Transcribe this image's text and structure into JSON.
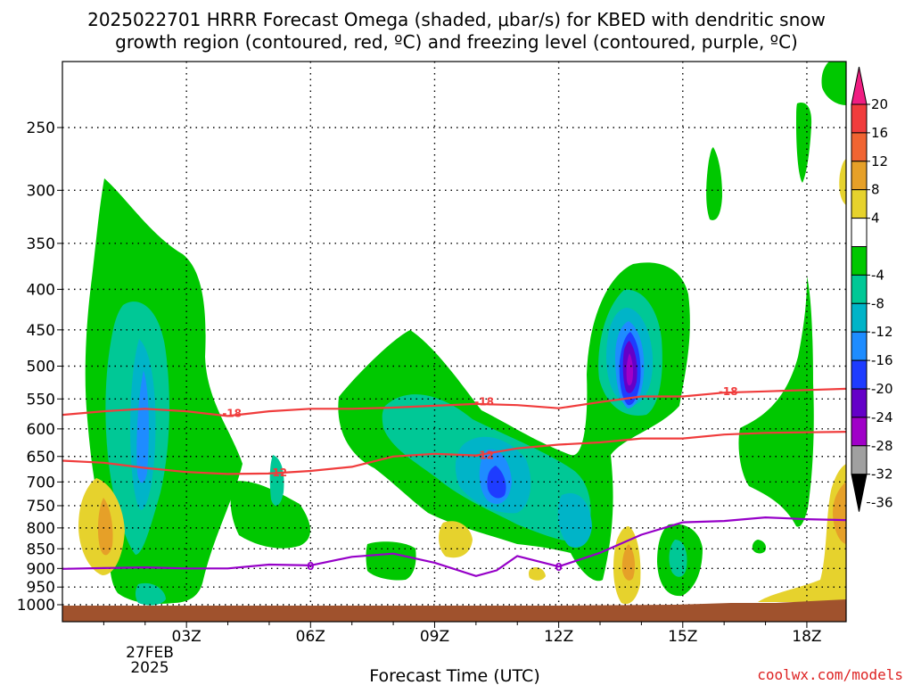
{
  "chart_data": {
    "type": "contour",
    "title_line1": "2025022701 HRRR Forecast Omega (shaded, μbar/s) for KBED with dendritic snow",
    "title_line2": "growth region (contoured, red, ºC) and freezing level (contoured, purple, ºC)",
    "xlabel": "Forecast Time (UTC)",
    "x_ticks": [
      "03Z",
      "06Z",
      "09Z",
      "12Z",
      "15Z",
      "18Z"
    ],
    "x_tick_hours": [
      3,
      6,
      9,
      12,
      15,
      18
    ],
    "x_date_lines": [
      "27FEB",
      "2025"
    ],
    "x_range_hours": [
      0.0,
      18.95
    ],
    "y_ticks": [
      250,
      300,
      350,
      400,
      450,
      500,
      550,
      600,
      650,
      700,
      750,
      800,
      850,
      900,
      950,
      1000
    ],
    "y_range_hpa": [
      200,
      1025
    ],
    "grid": true,
    "colorbar": {
      "tick_labels": [
        "20",
        "16",
        "12",
        "8",
        "4",
        "-4",
        "-8",
        "-12",
        "-16",
        "-20",
        "-24",
        "-28",
        "-32",
        "-36"
      ],
      "bins": [
        {
          "from": 16,
          "to": 20,
          "color": "#f03c3c"
        },
        {
          "from": 12,
          "to": 16,
          "color": "#f06432"
        },
        {
          "from": 8,
          "to": 12,
          "color": "#e6a028"
        },
        {
          "from": 4,
          "to": 8,
          "color": "#e6d22d"
        },
        {
          "from": -4,
          "to": 4,
          "color": "#ffffff"
        },
        {
          "from": -8,
          "to": -4,
          "color": "#00c800"
        },
        {
          "from": -12,
          "to": -8,
          "color": "#00c896"
        },
        {
          "from": -16,
          "to": -12,
          "color": "#00b4c8"
        },
        {
          "from": -20,
          "to": -16,
          "color": "#1e8cff"
        },
        {
          "from": -24,
          "to": -20,
          "color": "#1e3cff"
        },
        {
          "from": -28,
          "to": -24,
          "color": "#6400c8"
        },
        {
          "from": -32,
          "to": -28,
          "color": "#a000c8"
        },
        {
          "from": -36,
          "to": -32,
          "color": "#a0a0a0"
        }
      ],
      "top_arrow_color": "#f01e82",
      "bottom_arrow_color": "#000000"
    },
    "ground_color": "#a0522d",
    "contours": [
      {
        "name": "-18",
        "color": "#f03c3c",
        "label": "-18",
        "points": [
          [
            0.0,
            576
          ],
          [
            1.0,
            570
          ],
          [
            2.0,
            566
          ],
          [
            3.0,
            570
          ],
          [
            4.0,
            578
          ],
          [
            5.0,
            570
          ],
          [
            6.0,
            566
          ],
          [
            7.0,
            566
          ],
          [
            8.0,
            564
          ],
          [
            9.0,
            561
          ],
          [
            10.0,
            558
          ],
          [
            11.0,
            560
          ],
          [
            12.0,
            565
          ],
          [
            13.0,
            555
          ],
          [
            14.0,
            546
          ],
          [
            15.0,
            546
          ],
          [
            16.0,
            540
          ],
          [
            17.0,
            538
          ],
          [
            18.0,
            536
          ],
          [
            18.95,
            534
          ]
        ],
        "label_positions": [
          [
            4.1,
            572
          ],
          [
            10.2,
            553
          ],
          [
            16.1,
            537
          ]
        ]
      },
      {
        "name": "-12",
        "color": "#f03c3c",
        "label": "-12",
        "points": [
          [
            0.0,
            658
          ],
          [
            1.0,
            662
          ],
          [
            2.0,
            672
          ],
          [
            3.0,
            680
          ],
          [
            4.0,
            684
          ],
          [
            5.0,
            683
          ],
          [
            6.0,
            678
          ],
          [
            7.0,
            670
          ],
          [
            8.0,
            650
          ],
          [
            9.0,
            645
          ],
          [
            10.0,
            648
          ],
          [
            11.0,
            635
          ],
          [
            12.0,
            628
          ],
          [
            13.0,
            624
          ],
          [
            14.0,
            617
          ],
          [
            15.0,
            617
          ],
          [
            16.0,
            610
          ],
          [
            17.0,
            607
          ],
          [
            18.0,
            606
          ],
          [
            18.95,
            605
          ]
        ],
        "label_positions": [
          [
            5.2,
            680
          ],
          [
            10.2,
            646
          ]
        ]
      },
      {
        "name": "0",
        "color": "#9600c8",
        "label": "0",
        "points": [
          [
            0.0,
            901
          ],
          [
            1.0,
            899
          ],
          [
            2.0,
            897
          ],
          [
            3.0,
            900
          ],
          [
            4.0,
            900
          ],
          [
            5.0,
            890
          ],
          [
            6.0,
            892
          ],
          [
            7.0,
            870
          ],
          [
            8.0,
            862
          ],
          [
            9.0,
            885
          ],
          [
            10.0,
            920
          ],
          [
            10.5,
            905
          ],
          [
            11.0,
            868
          ],
          [
            12.0,
            895
          ],
          [
            13.0,
            860
          ],
          [
            14.0,
            816
          ],
          [
            15.0,
            787
          ],
          [
            16.0,
            784
          ],
          [
            17.0,
            776
          ],
          [
            18.0,
            780
          ],
          [
            18.95,
            782
          ]
        ],
        "label_positions": [
          [
            6.0,
            892
          ],
          [
            12.0,
            895
          ]
        ]
      }
    ]
  },
  "credit": "coolwx.com/models"
}
